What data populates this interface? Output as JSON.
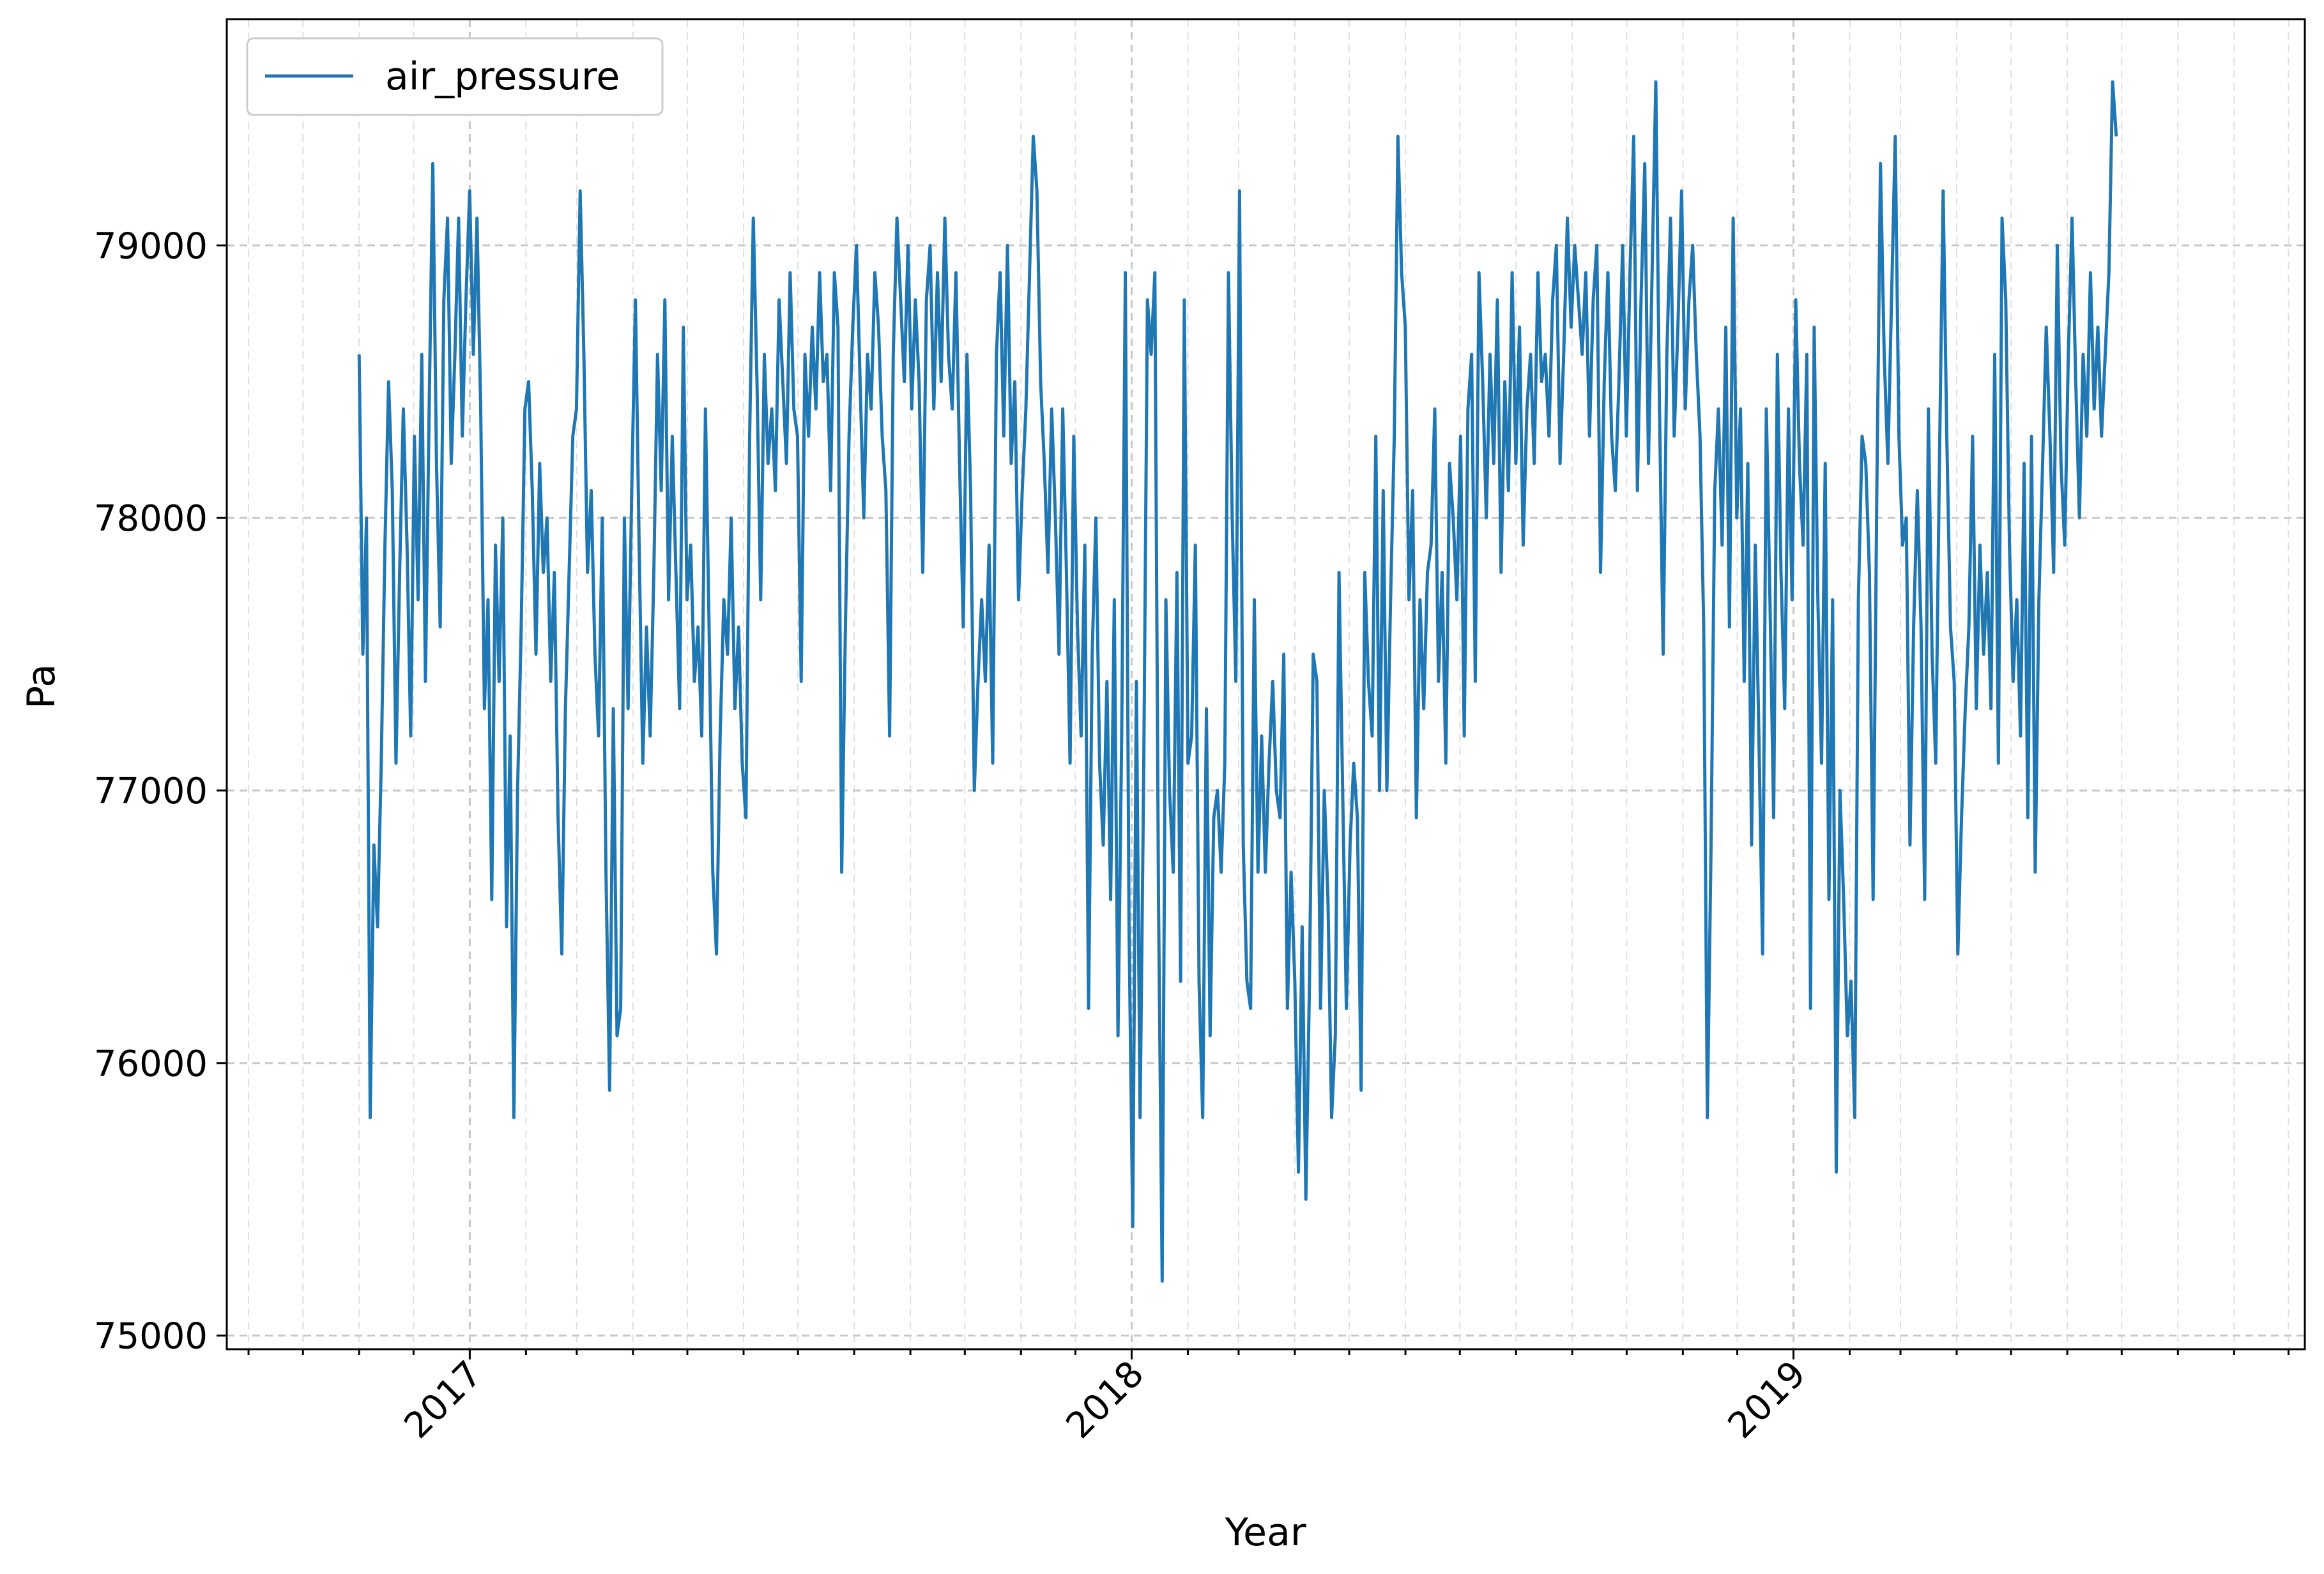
{
  "chart_data": {
    "type": "line",
    "title": "",
    "xlabel": "Year",
    "ylabel": "Pa",
    "x_start": "2016-11-01",
    "x_end": "2019-06-28",
    "xlim": [
      "2016-08-20",
      "2019-10-10"
    ],
    "ylim": [
      74950,
      79830
    ],
    "y_ticks": [
      75000,
      76000,
      77000,
      78000,
      79000
    ],
    "y_tick_labels": [
      "75000",
      "76000",
      "77000",
      "78000",
      "79000"
    ],
    "x_ticks": [
      "2017-01-01",
      "2018-01-01",
      "2019-01-01"
    ],
    "x_tick_labels": [
      "2017",
      "2018",
      "2019"
    ],
    "grid": true,
    "legend_position": "top-left",
    "series": [
      {
        "name": "air_pressure",
        "color": "#1f77b4",
        "values": [
          78600,
          77500,
          78000,
          75800,
          76800,
          76500,
          77100,
          77900,
          78500,
          78100,
          77100,
          77800,
          78400,
          77900,
          77200,
          78300,
          77700,
          78600,
          77400,
          78400,
          79300,
          78200,
          77600,
          78800,
          79100,
          78200,
          78600,
          79100,
          78300,
          78800,
          79200,
          78600,
          79100,
          78400,
          77300,
          77700,
          76600,
          77900,
          77400,
          78000,
          76500,
          77200,
          75800,
          77000,
          77600,
          78400,
          78500,
          78100,
          77500,
          78200,
          77800,
          78000,
          77400,
          77800,
          76900,
          76400,
          77300,
          77800,
          78300,
          78400,
          79200,
          78600,
          77800,
          78100,
          77500,
          77200,
          78000,
          76700,
          75900,
          77300,
          76100,
          76200,
          78000,
          77300,
          78100,
          78800,
          77900,
          77100,
          77600,
          77200,
          77800,
          78600,
          78100,
          78800,
          77700,
          78300,
          77800,
          77300,
          78700,
          77700,
          77900,
          77400,
          77600,
          77200,
          78400,
          77600,
          76700,
          76400,
          77200,
          77700,
          77500,
          78000,
          77300,
          77600,
          77100,
          76900,
          78300,
          79100,
          78500,
          77700,
          78600,
          78200,
          78400,
          78100,
          78800,
          78500,
          78200,
          78900,
          78400,
          78300,
          77400,
          78600,
          78300,
          78700,
          78400,
          78900,
          78500,
          78600,
          78100,
          78900,
          78700,
          76700,
          77600,
          78300,
          78700,
          79000,
          78500,
          78000,
          78600,
          78400,
          78900,
          78700,
          78300,
          78100,
          77200,
          78600,
          79100,
          78800,
          78500,
          79000,
          78400,
          78800,
          78500,
          77800,
          78800,
          79000,
          78400,
          78900,
          78500,
          79100,
          78600,
          78400,
          78900,
          78200,
          77600,
          78600,
          78100,
          77000,
          77400,
          77700,
          77400,
          77900,
          77100,
          78600,
          78900,
          78300,
          79000,
          78200,
          78500,
          77700,
          78100,
          78400,
          78900,
          79400,
          79200,
          78500,
          78200,
          77800,
          78400,
          78000,
          77500,
          78400,
          77800,
          77100,
          78300,
          77600,
          77200,
          77900,
          76200,
          77500,
          78000,
          77100,
          76800,
          77400,
          76600,
          77700,
          76100,
          77200,
          78900,
          76500,
          75400,
          77400,
          75800,
          77100,
          78800,
          78600,
          78900,
          76600,
          75200,
          77700,
          77000,
          76700,
          77800,
          76300,
          78800,
          77100,
          77200,
          77900,
          76300,
          75800,
          77300,
          76100,
          76900,
          77000,
          76700,
          77100,
          78900,
          78000,
          77400,
          79200,
          76800,
          76300,
          76200,
          77700,
          76700,
          77200,
          76700,
          77100,
          77400,
          77000,
          76900,
          77500,
          76200,
          76700,
          76300,
          75600,
          76500,
          75500,
          76300,
          77500,
          77400,
          76200,
          77000,
          76600,
          75800,
          76100,
          77800,
          77000,
          76200,
          76800,
          77100,
          76900,
          75900,
          77800,
          77400,
          77200,
          78300,
          77000,
          78100,
          77000,
          77700,
          78300,
          79400,
          78900,
          78700,
          77700,
          78100,
          76900,
          77700,
          77300,
          77800,
          77900,
          78400,
          77400,
          77800,
          77100,
          78200,
          78000,
          77700,
          78300,
          77200,
          78400,
          78600,
          77400,
          78900,
          78500,
          78000,
          78600,
          78200,
          78800,
          77800,
          78500,
          78100,
          78900,
          78200,
          78700,
          77900,
          78400,
          78600,
          78200,
          78900,
          78500,
          78600,
          78300,
          78800,
          79000,
          78200,
          78600,
          79100,
          78700,
          79000,
          78800,
          78600,
          78900,
          78300,
          78800,
          79000,
          77800,
          78500,
          78900,
          78300,
          78100,
          78500,
          79000,
          78300,
          78900,
          79400,
          78100,
          78800,
          79300,
          78200,
          78900,
          79600,
          78400,
          77500,
          78600,
          79100,
          78300,
          78700,
          79200,
          78400,
          78800,
          79000,
          78600,
          78300,
          77600,
          75800,
          76800,
          78100,
          78400,
          77900,
          78700,
          77600,
          79100,
          78000,
          78400,
          77400,
          78200,
          76800,
          77900,
          77200,
          76400,
          78400,
          77700,
          76900,
          78600,
          77800,
          77300,
          78400,
          77700,
          78800,
          78200,
          77900,
          78600,
          76200,
          78700,
          77700,
          77100,
          78200,
          76600,
          77700,
          75600,
          77000,
          76600,
          76100,
          76300,
          75800,
          77700,
          78300,
          78200,
          77800,
          76600,
          78100,
          79300,
          78600,
          78200,
          78800,
          79400,
          78300,
          77900,
          78000,
          76800,
          77600,
          78100,
          77600,
          76600,
          78400,
          77500,
          77100,
          78200,
          79200,
          78300,
          77600,
          77400,
          76400,
          76900,
          77300,
          77600,
          78300,
          77300,
          77900,
          77500,
          77800,
          77300,
          78600,
          77100,
          79100,
          78800,
          77900,
          77400,
          77700,
          77200,
          78200,
          76900,
          78300,
          76700,
          77700,
          78200,
          78700,
          78300,
          77800,
          79000,
          78200,
          77900,
          78600,
          79100,
          78500,
          78000,
          78600,
          78300,
          78900,
          78400,
          78700,
          78300,
          78600,
          78900,
          79600,
          79400
        ]
      }
    ]
  }
}
